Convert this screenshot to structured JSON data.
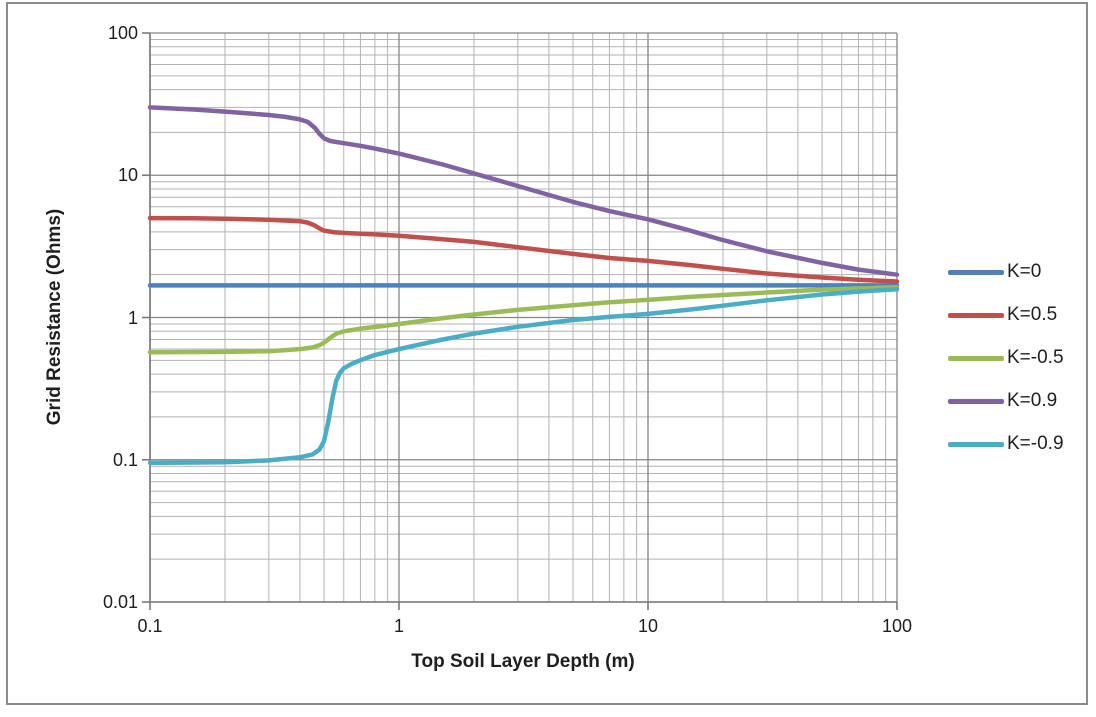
{
  "chart_data": {
    "type": "line",
    "title": "",
    "xlabel": "Top Soil Layer Depth (m)",
    "ylabel": "Grid Resistance (Ohms)",
    "x_scale": "log",
    "y_scale": "log",
    "xlim": [
      0.1,
      100
    ],
    "ylim": [
      0.01,
      100
    ],
    "x_ticks": [
      0.1,
      1,
      10,
      100
    ],
    "x_tick_labels": [
      "0.1",
      "1",
      "10",
      "100"
    ],
    "y_ticks": [
      0.01,
      0.1,
      1,
      10,
      100
    ],
    "y_tick_labels": [
      "0.01",
      "0.1",
      "1",
      "10",
      "100"
    ],
    "grid": "major and minor log gridlines, both axes",
    "legend_position": "right",
    "series": [
      {
        "name": "K=0",
        "color": "#4F81BD",
        "points": [
          [
            0.1,
            1.68
          ],
          [
            1,
            1.68
          ],
          [
            10,
            1.68
          ],
          [
            100,
            1.68
          ]
        ]
      },
      {
        "name": "K=0.5",
        "color": "#C0504D",
        "points": [
          [
            0.1,
            5.0
          ],
          [
            0.15,
            4.98
          ],
          [
            0.2,
            4.95
          ],
          [
            0.3,
            4.87
          ],
          [
            0.4,
            4.75
          ],
          [
            0.43,
            4.65
          ],
          [
            0.46,
            4.42
          ],
          [
            0.48,
            4.22
          ],
          [
            0.5,
            4.08
          ],
          [
            0.55,
            3.97
          ],
          [
            0.6,
            3.93
          ],
          [
            0.7,
            3.88
          ],
          [
            0.8,
            3.84
          ],
          [
            1,
            3.76
          ],
          [
            1.5,
            3.55
          ],
          [
            2,
            3.4
          ],
          [
            3,
            3.12
          ],
          [
            5,
            2.8
          ],
          [
            7,
            2.62
          ],
          [
            10,
            2.5
          ],
          [
            15,
            2.33
          ],
          [
            20,
            2.2
          ],
          [
            30,
            2.04
          ],
          [
            50,
            1.91
          ],
          [
            70,
            1.84
          ],
          [
            100,
            1.79
          ]
        ]
      },
      {
        "name": "K=-0.5",
        "color": "#9BBB59",
        "points": [
          [
            0.1,
            0.57
          ],
          [
            0.2,
            0.573
          ],
          [
            0.3,
            0.58
          ],
          [
            0.4,
            0.6
          ],
          [
            0.45,
            0.615
          ],
          [
            0.48,
            0.64
          ],
          [
            0.5,
            0.665
          ],
          [
            0.53,
            0.72
          ],
          [
            0.56,
            0.77
          ],
          [
            0.6,
            0.8
          ],
          [
            0.7,
            0.835
          ],
          [
            0.8,
            0.857
          ],
          [
            1,
            0.9
          ],
          [
            1.5,
            0.99
          ],
          [
            2,
            1.05
          ],
          [
            3,
            1.13
          ],
          [
            5,
            1.22
          ],
          [
            7,
            1.28
          ],
          [
            10,
            1.33
          ],
          [
            15,
            1.4
          ],
          [
            20,
            1.44
          ],
          [
            30,
            1.5
          ],
          [
            50,
            1.57
          ],
          [
            70,
            1.6
          ],
          [
            100,
            1.63
          ]
        ]
      },
      {
        "name": "K=0.9",
        "color": "#8064A2",
        "points": [
          [
            0.1,
            30
          ],
          [
            0.15,
            29
          ],
          [
            0.2,
            28
          ],
          [
            0.3,
            26.5
          ],
          [
            0.35,
            25.7
          ],
          [
            0.4,
            24.7
          ],
          [
            0.43,
            23.7
          ],
          [
            0.46,
            21.5
          ],
          [
            0.48,
            19.5
          ],
          [
            0.5,
            18.2
          ],
          [
            0.53,
            17.4
          ],
          [
            0.6,
            16.8
          ],
          [
            0.7,
            16.1
          ],
          [
            0.8,
            15.4
          ],
          [
            1,
            14.2
          ],
          [
            1.5,
            11.9
          ],
          [
            2,
            10.3
          ],
          [
            3,
            8.4
          ],
          [
            5,
            6.5
          ],
          [
            7,
            5.6
          ],
          [
            10,
            4.9
          ],
          [
            15,
            4.05
          ],
          [
            20,
            3.5
          ],
          [
            30,
            2.92
          ],
          [
            50,
            2.42
          ],
          [
            70,
            2.17
          ],
          [
            100,
            2.0
          ]
        ]
      },
      {
        "name": "K=-0.9",
        "color": "#4BACC6",
        "points": [
          [
            0.1,
            0.095
          ],
          [
            0.2,
            0.096
          ],
          [
            0.3,
            0.099
          ],
          [
            0.4,
            0.104
          ],
          [
            0.45,
            0.109
          ],
          [
            0.48,
            0.118
          ],
          [
            0.5,
            0.135
          ],
          [
            0.52,
            0.185
          ],
          [
            0.54,
            0.27
          ],
          [
            0.56,
            0.36
          ],
          [
            0.58,
            0.41
          ],
          [
            0.6,
            0.44
          ],
          [
            0.65,
            0.475
          ],
          [
            0.7,
            0.5
          ],
          [
            0.8,
            0.545
          ],
          [
            1,
            0.6
          ],
          [
            1.5,
            0.7
          ],
          [
            2,
            0.77
          ],
          [
            3,
            0.86
          ],
          [
            5,
            0.96
          ],
          [
            7,
            1.01
          ],
          [
            10,
            1.06
          ],
          [
            15,
            1.14
          ],
          [
            20,
            1.21
          ],
          [
            30,
            1.32
          ],
          [
            50,
            1.45
          ],
          [
            70,
            1.52
          ],
          [
            100,
            1.58
          ]
        ]
      }
    ]
  },
  "legend": {
    "entries": [
      {
        "label": "K=0",
        "color": "#4F81BD"
      },
      {
        "label": "K=0.5",
        "color": "#C0504D"
      },
      {
        "label": "K=-0.5",
        "color": "#9BBB59"
      },
      {
        "label": "K=0.9",
        "color": "#8064A2"
      },
      {
        "label": "K=-0.9",
        "color": "#4BACC6"
      }
    ]
  },
  "style_colors": {
    "grid_minor": "#b3b3b3",
    "grid_major": "#858585",
    "axis": "#7a7a7a",
    "text": "#1f1f1f",
    "frame_border": "#8c8c8c",
    "background": "#ffffff"
  }
}
